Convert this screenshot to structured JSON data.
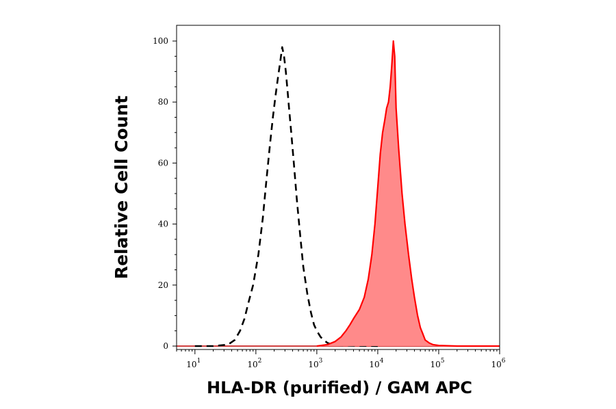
{
  "chart_data": {
    "type": "area",
    "x_scale": "log",
    "xlim": [
      5,
      1000000
    ],
    "ylim": [
      0,
      100
    ],
    "xlabel": "HLA-DR (purified) / GAM APC",
    "ylabel": "Relative Cell Count",
    "grid": false,
    "legend": "none",
    "x_ticks": [
      {
        "base": "10",
        "exp": "1",
        "value": 10
      },
      {
        "base": "10",
        "exp": "2",
        "value": 100
      },
      {
        "base": "10",
        "exp": "3",
        "value": 1000
      },
      {
        "base": "10",
        "exp": "4",
        "value": 10000
      },
      {
        "base": "10",
        "exp": "5",
        "value": 100000
      },
      {
        "base": "10",
        "exp": "6",
        "value": 1000000
      }
    ],
    "y_ticks": [
      "0",
      "20",
      "40",
      "60",
      "80",
      "100"
    ],
    "series": [
      {
        "style": "dashed-line",
        "color": "#000000",
        "x": [
          10,
          20,
          35,
          45,
          55,
          65,
          75,
          90,
          110,
          130,
          150,
          170,
          190,
          210,
          230,
          250,
          270,
          290,
          310,
          330,
          350,
          380,
          420,
          470,
          530,
          600,
          700,
          800,
          900,
          1000,
          1150,
          1300,
          1500,
          1800,
          2200,
          3000,
          5000,
          10000
        ],
        "y": [
          0,
          0,
          0.5,
          2,
          5,
          9,
          14,
          20,
          30,
          42,
          55,
          66,
          75,
          82,
          88,
          93,
          98,
          95,
          90,
          84,
          78,
          70,
          60,
          48,
          37,
          26,
          17,
          11,
          7,
          5,
          3,
          2,
          1,
          0.5,
          0.3,
          0.2,
          0.1,
          0
        ]
      },
      {
        "style": "filled-area",
        "color": "#ff0000",
        "fill": "#ff8a8a",
        "x": [
          1000,
          1500,
          2000,
          2500,
          3000,
          3500,
          4000,
          5000,
          6000,
          7000,
          8000,
          9000,
          10000,
          11000,
          12000,
          13000,
          14000,
          15000,
          16000,
          17000,
          18000,
          19000,
          20000,
          22000,
          25000,
          28000,
          32000,
          36000,
          40000,
          45000,
          50000,
          55000,
          60000,
          70000,
          80000,
          100000,
          200000,
          1000000
        ],
        "y": [
          0,
          0.5,
          1.5,
          3,
          5,
          7,
          9,
          12,
          16,
          22,
          30,
          40,
          52,
          63,
          70,
          74,
          78,
          80,
          85,
          92,
          100,
          95,
          78,
          65,
          50,
          40,
          30,
          22,
          16,
          10,
          6,
          4,
          2,
          1,
          0.5,
          0.2,
          0,
          0
        ]
      }
    ]
  }
}
